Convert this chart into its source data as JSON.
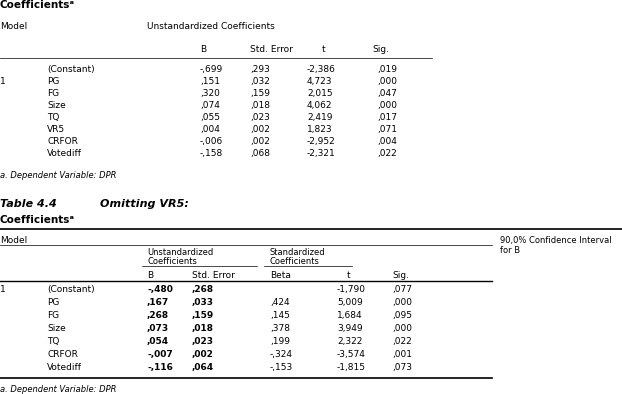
{
  "title_top": "Coefficientsᵃ",
  "footnote_top": "a. Dependent Variable: DPR",
  "table4_title": "Table 4.4",
  "table4_subtitle": "Omitting VR5:",
  "table4_coef_title": "Coefficientsᵃ",
  "footnote_bottom": "a. Dependent Variable: DPR",
  "top_table": {
    "subheader": "Unstandardized Coefficients",
    "col_headers": [
      "B",
      "Std. Error",
      "t",
      "Sig."
    ],
    "rows": [
      [
        "(Constant)",
        "-,699",
        ",293",
        "-2,386",
        ",019"
      ],
      [
        "PG",
        ",151",
        ",032",
        "4,723",
        ",000"
      ],
      [
        "FG",
        ",320",
        ",159",
        "2,015",
        ",047"
      ],
      [
        "Size",
        ",074",
        ",018",
        "4,062",
        ",000"
      ],
      [
        "TQ",
        ",055",
        ",023",
        "2,419",
        ",017"
      ],
      [
        "VR5",
        ",004",
        ",002",
        "1,823",
        ",071"
      ],
      [
        "CRFOR",
        "-,006",
        ",002",
        "-2,952",
        ",004"
      ],
      [
        "Votediff",
        "-,158",
        ",068",
        "-2,321",
        ",022"
      ]
    ],
    "model_label": "1"
  },
  "bottom_table": {
    "col_group1": "Unstandardized\nCoefficients",
    "col_group2": "Standardized\nCoefficients",
    "col_group3_line1": "90,0% Confidence Interval",
    "col_group3_line2": "for B",
    "col_headers": [
      "B",
      "Std. Error",
      "Beta",
      "t",
      "Sig."
    ],
    "rows": [
      [
        "(Constant)",
        "-,480",
        ",268",
        "",
        "-1,790",
        ",077"
      ],
      [
        "PG",
        ",167",
        ",033",
        ",424",
        "5,009",
        ",000"
      ],
      [
        "FG",
        ",268",
        ",159",
        ",145",
        "1,684",
        ",095"
      ],
      [
        "Size",
        ",073",
        ",018",
        ",378",
        "3,949",
        ",000"
      ],
      [
        "TQ",
        ",054",
        ",023",
        ",199",
        "2,322",
        ",022"
      ],
      [
        "CRFOR",
        "-,007",
        ",002",
        "-,324",
        "-3,574",
        ",001"
      ],
      [
        "Votediff",
        "-,116",
        ",064",
        "-,153",
        "-1,815",
        ",073"
      ]
    ],
    "model_label": "1"
  }
}
